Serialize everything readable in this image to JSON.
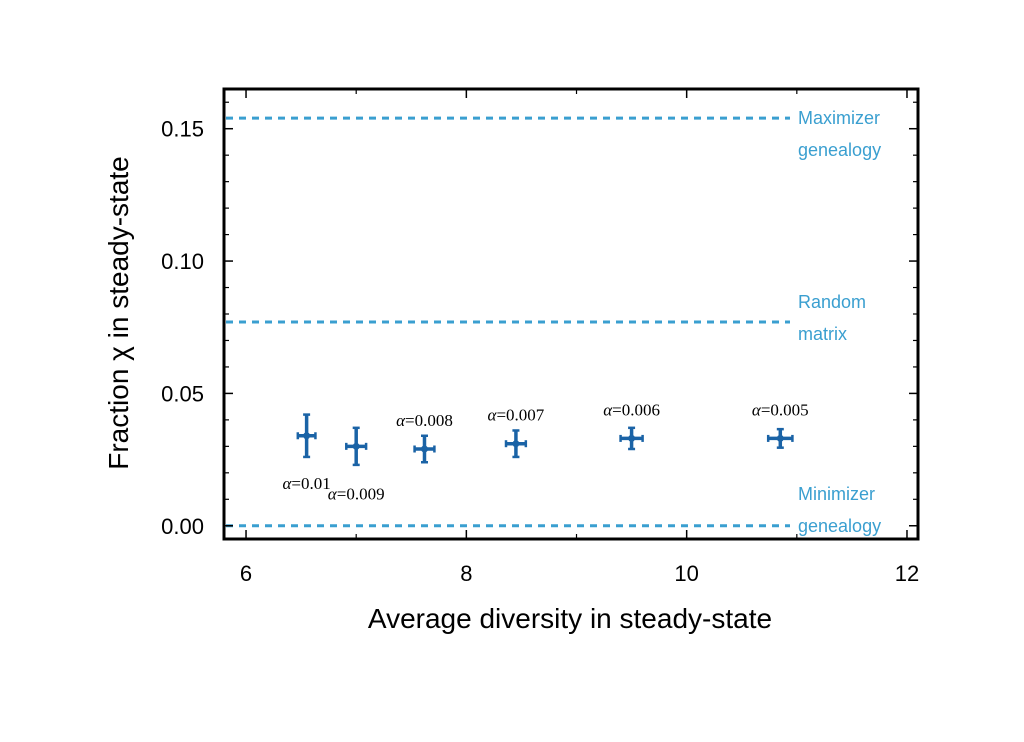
{
  "chart_data": {
    "type": "scatter",
    "title": "",
    "xlabel": "Average diversity in steady-state",
    "ylabel": "Fraction χ in steady-state",
    "xlim": [
      5.8,
      12.1
    ],
    "ylim": [
      -0.005,
      0.165
    ],
    "x_ticks": [
      {
        "value": 6,
        "label": "6"
      },
      {
        "value": 8,
        "label": "8"
      },
      {
        "value": 10,
        "label": "10"
      },
      {
        "value": 12,
        "label": "12"
      }
    ],
    "x_minor_step": 1,
    "y_ticks": [
      {
        "value": 0.0,
        "label": "0.00"
      },
      {
        "value": 0.05,
        "label": "0.05"
      },
      {
        "value": 0.1,
        "label": "0.10"
      },
      {
        "value": 0.15,
        "label": "0.15"
      }
    ],
    "y_minor_step": 0.01,
    "grid": false,
    "colors": {
      "points": "#1a63a6",
      "reference_lines": "#3a9fd0",
      "axes": "#000000"
    },
    "reference_lines": [
      {
        "y": 0.154,
        "label_lines": [
          "Maximizer",
          "genealogy"
        ]
      },
      {
        "y": 0.077,
        "label_lines": [
          "Random",
          "matrix"
        ]
      },
      {
        "y": 0.0,
        "label_lines": [
          "Minimizer",
          "genealogy"
        ]
      }
    ],
    "points": [
      {
        "symbol": "α",
        "label_value": "=0.01",
        "label_position": "below",
        "x": 6.55,
        "y": 0.034,
        "x_err": 0.08,
        "y_err": 0.008
      },
      {
        "symbol": "α",
        "label_value": "=0.009",
        "label_position": "below",
        "x": 7.0,
        "y": 0.03,
        "x_err": 0.09,
        "y_err": 0.007
      },
      {
        "symbol": "α",
        "label_value": "=0.008",
        "label_position": "above",
        "x": 7.62,
        "y": 0.029,
        "x_err": 0.09,
        "y_err": 0.005
      },
      {
        "symbol": "α",
        "label_value": "=0.007",
        "label_position": "above",
        "x": 8.45,
        "y": 0.031,
        "x_err": 0.09,
        "y_err": 0.005
      },
      {
        "symbol": "α",
        "label_value": "=0.006",
        "label_position": "above",
        "x": 9.5,
        "y": 0.033,
        "x_err": 0.1,
        "y_err": 0.004
      },
      {
        "symbol": "α",
        "label_value": "=0.005",
        "label_position": "above",
        "x": 10.85,
        "y": 0.033,
        "x_err": 0.11,
        "y_err": 0.0035
      }
    ]
  }
}
